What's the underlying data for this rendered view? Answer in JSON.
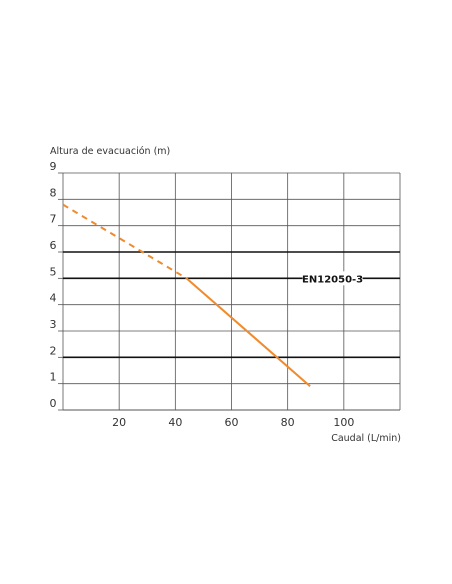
{
  "chart_data": {
    "type": "line",
    "ylabel": "Altura de evacuación (m)",
    "xlabel": "Caudal (L/min)",
    "xlim": [
      0,
      120
    ],
    "ylim": [
      0,
      9
    ],
    "xticks": [
      20,
      40,
      60,
      80,
      100
    ],
    "xtick_labels": [
      "20",
      "40",
      "60",
      "80",
      "100"
    ],
    "yticks": [
      0,
      1,
      2,
      3,
      4,
      5,
      6,
      7,
      8,
      9
    ],
    "ytick_labels": [
      "0",
      "1",
      "2",
      "3",
      "4",
      "5",
      "6",
      "7",
      "8",
      "9"
    ],
    "vertical_grid": [
      0,
      20,
      40,
      60,
      80,
      100,
      120
    ],
    "horizontal_grid": [
      1,
      2,
      3,
      4,
      5,
      6,
      7,
      8,
      9
    ],
    "emphasized_gridlines_y": [
      2,
      5,
      6
    ],
    "grid": true,
    "series": [
      {
        "style": "dashed",
        "color": "#f08a2c",
        "x": [
          0,
          44
        ],
        "y": [
          7.8,
          5.0
        ]
      },
      {
        "style": "solid",
        "color": "#f08a2c",
        "x": [
          44,
          88
        ],
        "y": [
          5.0,
          0.9
        ]
      }
    ],
    "annotations": [
      {
        "text": "EN12050-3",
        "x": 96,
        "y": 5
      }
    ],
    "colors": {
      "line": "#f08a2c",
      "grid": "#555555",
      "grid_emphasis": "#111111",
      "text": "#333333"
    }
  }
}
